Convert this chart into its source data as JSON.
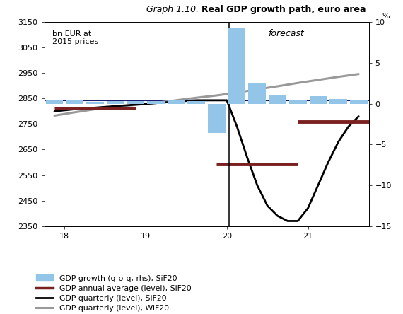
{
  "title_italic": "Graph 1.10: ",
  "title_bold": "Real GDP growth path, euro area",
  "left_label": "bn EUR at\n2015 prices",
  "right_label": "%",
  "forecast_label": "forecast",
  "ylim_left": [
    2350,
    3150
  ],
  "ylim_right": [
    -15,
    10
  ],
  "xlim": [
    17.75,
    21.75
  ],
  "xticks": [
    18,
    19,
    20,
    21
  ],
  "yticks_left": [
    2350,
    2450,
    2550,
    2650,
    2750,
    2850,
    2950,
    3050,
    3150
  ],
  "yticks_right": [
    -15,
    -10,
    -5,
    0,
    5,
    10
  ],
  "bar_quarters": [
    17.875,
    18.125,
    18.375,
    18.625,
    18.875,
    19.125,
    19.375,
    19.625,
    19.875,
    20.125,
    20.375,
    20.625,
    20.875,
    21.125,
    21.375,
    21.625
  ],
  "bar_values": [
    0.4,
    0.4,
    0.2,
    0.3,
    0.3,
    0.3,
    0.4,
    0.3,
    -3.6,
    9.3,
    2.5,
    1.0,
    0.5,
    0.9,
    0.6,
    0.4
  ],
  "gdp_quarterly_sif20_x": [
    17.875,
    18.125,
    18.375,
    18.625,
    18.875,
    19.125,
    19.375,
    19.625,
    19.875,
    20.0,
    20.125,
    20.25,
    20.375,
    20.5,
    20.625,
    20.75,
    20.875,
    21.0,
    21.125,
    21.25,
    21.375,
    21.5,
    21.625
  ],
  "gdp_quarterly_sif20_y": [
    2800,
    2808,
    2814,
    2820,
    2826,
    2832,
    2838,
    2843,
    2843,
    2843,
    2740,
    2620,
    2510,
    2430,
    2390,
    2370,
    2370,
    2420,
    2510,
    2600,
    2680,
    2740,
    2780
  ],
  "gdp_quarterly_wif20_x": [
    17.875,
    18.125,
    18.375,
    18.625,
    18.875,
    19.125,
    19.375,
    19.625,
    19.875,
    20.125,
    20.375,
    20.625,
    20.875,
    21.125,
    21.375,
    21.625
  ],
  "gdp_quarterly_wif20_y": [
    2783,
    2796,
    2808,
    2817,
    2825,
    2833,
    2843,
    2853,
    2862,
    2873,
    2886,
    2898,
    2911,
    2923,
    2935,
    2946
  ],
  "annual_avg_sif20": [
    {
      "x_start": 17.875,
      "x_end": 18.875,
      "y": 2813
    },
    {
      "x_start": 19.875,
      "x_end": 20.875,
      "y": 2593
    },
    {
      "x_start": 20.875,
      "x_end": 21.75,
      "y": 2758
    }
  ],
  "forecast_line_x": 20.03,
  "horizontal_line_y": 2843,
  "bar_width": 0.215,
  "bar_color_hex": "#92C5E8",
  "annual_avg_color": "#7B2020",
  "gdp_sif20_color": "#000000",
  "gdp_wif20_color": "#999999",
  "background_color": "#ffffff"
}
